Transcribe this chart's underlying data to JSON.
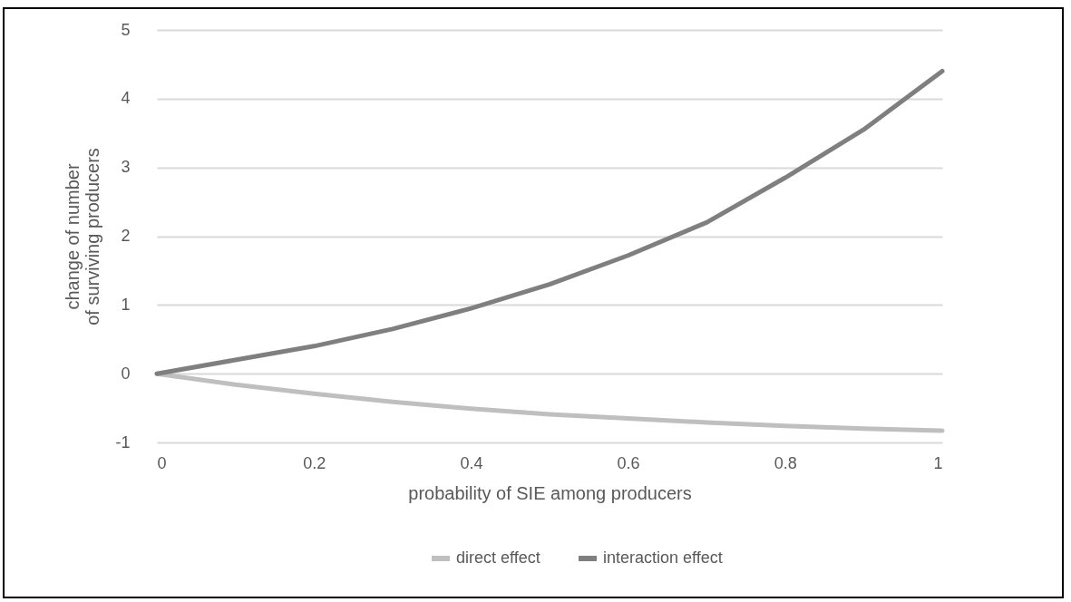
{
  "chart_data": {
    "type": "line",
    "xlabel": "probability of SIE among producers",
    "ylabel": "change of number\nof surviving producers",
    "x": [
      0,
      0.1,
      0.2,
      0.3,
      0.4,
      0.5,
      0.6,
      0.7,
      0.8,
      0.9,
      1
    ],
    "series": [
      {
        "name": "direct effect",
        "color": "#bfbfbf",
        "values": [
          0,
          -0.16,
          -0.29,
          -0.41,
          -0.51,
          -0.59,
          -0.65,
          -0.71,
          -0.76,
          -0.8,
          -0.83
        ]
      },
      {
        "name": "interaction effect",
        "color": "#7f7f7f",
        "values": [
          0,
          0.2,
          0.4,
          0.65,
          0.95,
          1.3,
          1.72,
          2.2,
          2.85,
          3.55,
          4.4
        ]
      }
    ],
    "xlim": [
      0,
      1
    ],
    "xticks": [
      0,
      0.2,
      0.4,
      0.6,
      0.8,
      1
    ],
    "ylim": [
      -1,
      5
    ],
    "yticks": [
      -1,
      0,
      1,
      2,
      3,
      4,
      5
    ],
    "grid": "y",
    "legend": "bottom",
    "marker": "none",
    "line_style": "solid"
  }
}
